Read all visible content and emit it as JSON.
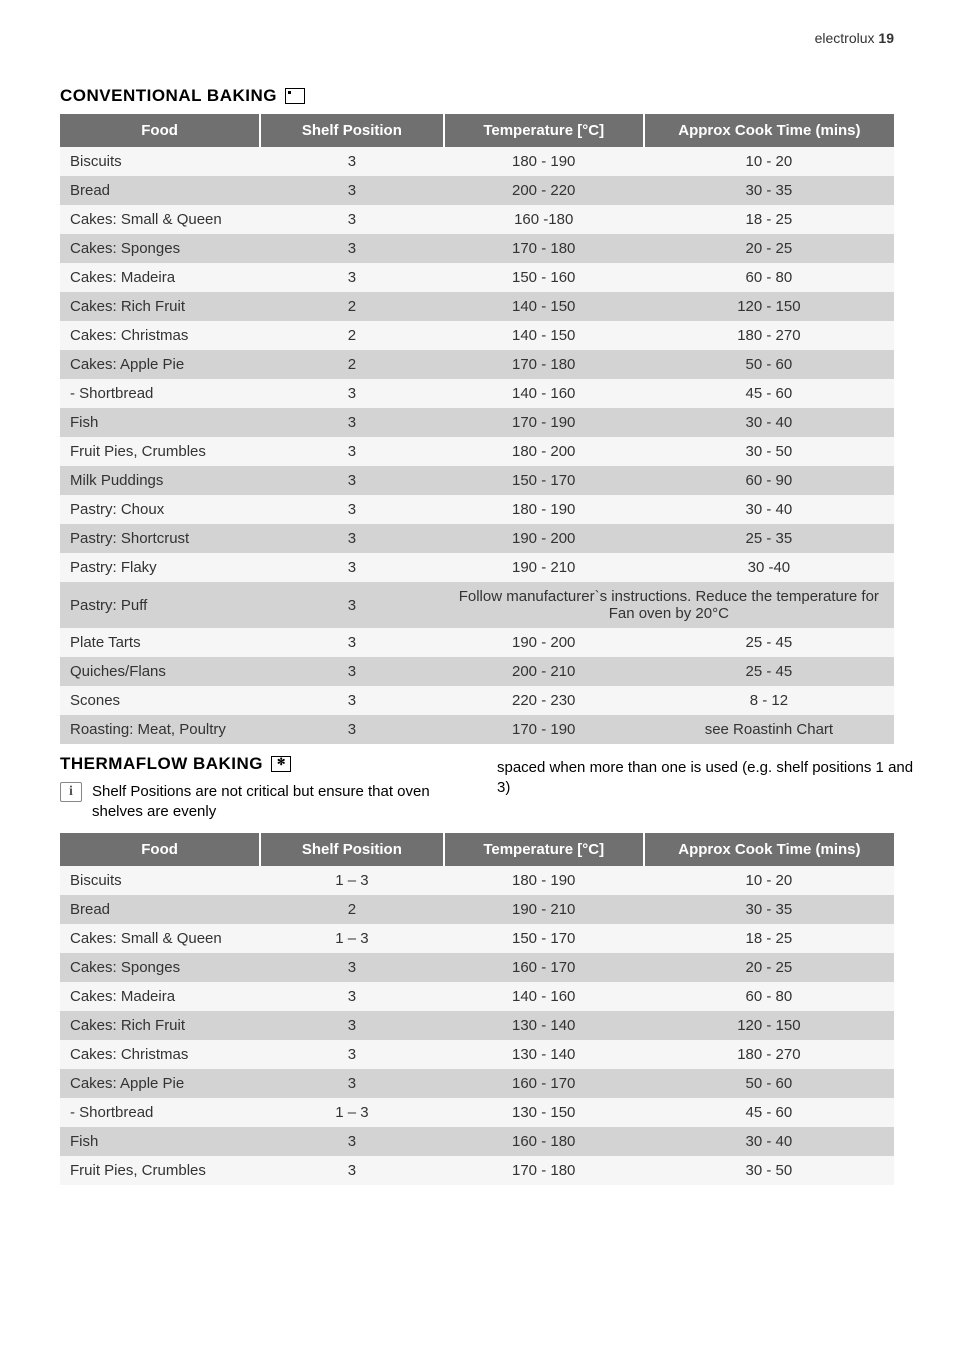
{
  "page_header": {
    "brand": "electrolux",
    "page_number": "19"
  },
  "table_headers": {
    "food": "Food",
    "shelf": "Shelf Position",
    "temp": "Temperature [°C]",
    "time": "Approx Cook Time (mins)"
  },
  "conventional": {
    "heading": "CONVENTIONAL BAKING",
    "rows": [
      {
        "food": "Biscuits",
        "shelf": "3",
        "temp": "180 - 190",
        "time": "10 - 20"
      },
      {
        "food": "Bread",
        "shelf": "3",
        "temp": "200 - 220",
        "time": "30 - 35"
      },
      {
        "food": "Cakes: Small & Queen",
        "shelf": "3",
        "temp": "160 -180",
        "time": "18 - 25"
      },
      {
        "food": "Cakes: Sponges",
        "shelf": "3",
        "temp": "170 - 180",
        "time": "20 - 25"
      },
      {
        "food": "Cakes: Madeira",
        "shelf": "3",
        "temp": "150 - 160",
        "time": "60 - 80"
      },
      {
        "food": "Cakes: Rich Fruit",
        "shelf": "2",
        "temp": "140 - 150",
        "time": "120 - 150"
      },
      {
        "food": "Cakes: Christmas",
        "shelf": "2",
        "temp": "140 - 150",
        "time": "180 - 270"
      },
      {
        "food": "Cakes: Apple Pie",
        "shelf": "2",
        "temp": "170 - 180",
        "time": "50 - 60"
      },
      {
        "food": "- Shortbread",
        "shelf": "3",
        "temp": "140 - 160",
        "time": "45 - 60"
      },
      {
        "food": "Fish",
        "shelf": "3",
        "temp": "170 - 190",
        "time": "30 - 40"
      },
      {
        "food": "Fruit Pies, Crumbles",
        "shelf": "3",
        "temp": "180 - 200",
        "time": "30 - 50"
      },
      {
        "food": "Milk Puddings",
        "shelf": "3",
        "temp": "150 - 170",
        "time": "60 - 90"
      },
      {
        "food": "Pastry: Choux",
        "shelf": "3",
        "temp": "180 - 190",
        "time": "30 - 40"
      },
      {
        "food": "Pastry: Shortcrust",
        "shelf": "3",
        "temp": "190 - 200",
        "time": "25 - 35"
      },
      {
        "food": "Pastry: Flaky",
        "shelf": "3",
        "temp": "190 - 210",
        "time": "30 -40"
      },
      {
        "food": "Pastry: Puff",
        "shelf": "3",
        "merged": "Follow manufacturer`s instructions. Reduce the temperature for Fan oven by 20°C"
      },
      {
        "food": "Plate Tarts",
        "shelf": "3",
        "temp": "190 - 200",
        "time": "25 - 45"
      },
      {
        "food": "Quiches/Flans",
        "shelf": "3",
        "temp": "200 - 210",
        "time": "25 - 45"
      },
      {
        "food": "Scones",
        "shelf": "3",
        "temp": "220 - 230",
        "time": "8 - 12"
      },
      {
        "food": "Roasting: Meat, Poultry",
        "shelf": "3",
        "temp": "170 - 190",
        "time": "see Roastinh Chart"
      }
    ]
  },
  "thermaflow": {
    "heading": "THERMAFLOW BAKING",
    "note_left": "Shelf Positions are not critical but ensure that oven shelves are evenly",
    "note_right": "spaced when more than one is used (e.g. shelf positions 1 and 3)",
    "rows": [
      {
        "food": "Biscuits",
        "shelf": "1 – 3",
        "temp": "180 - 190",
        "time": "10 - 20"
      },
      {
        "food": "Bread",
        "shelf": "2",
        "temp": "190 - 210",
        "time": "30 - 35"
      },
      {
        "food": "Cakes: Small & Queen",
        "shelf": "1 – 3",
        "temp": "150 - 170",
        "time": "18 - 25"
      },
      {
        "food": "Cakes: Sponges",
        "shelf": "3",
        "temp": "160 - 170",
        "time": "20 - 25"
      },
      {
        "food": "Cakes: Madeira",
        "shelf": "3",
        "temp": "140 - 160",
        "time": "60 - 80"
      },
      {
        "food": "Cakes: Rich Fruit",
        "shelf": "3",
        "temp": "130 - 140",
        "time": "120 - 150"
      },
      {
        "food": "Cakes: Christmas",
        "shelf": "3",
        "temp": "130 - 140",
        "time": "180 - 270"
      },
      {
        "food": "Cakes: Apple Pie",
        "shelf": "3",
        "temp": "160 - 170",
        "time": "50 - 60"
      },
      {
        "food": "- Shortbread",
        "shelf": "1 – 3",
        "temp": "130 - 150",
        "time": "45 - 60"
      },
      {
        "food": "Fish",
        "shelf": "3",
        "temp": "160 - 180",
        "time": "30 - 40"
      },
      {
        "food": "Fruit Pies, Crumbles",
        "shelf": "3",
        "temp": "170 - 180",
        "time": "30 - 50"
      }
    ]
  },
  "colors": {
    "header_bg": "#707070",
    "header_fg": "#ffffff",
    "row_odd": "#f6f6f6",
    "row_even": "#d3d3d3"
  }
}
